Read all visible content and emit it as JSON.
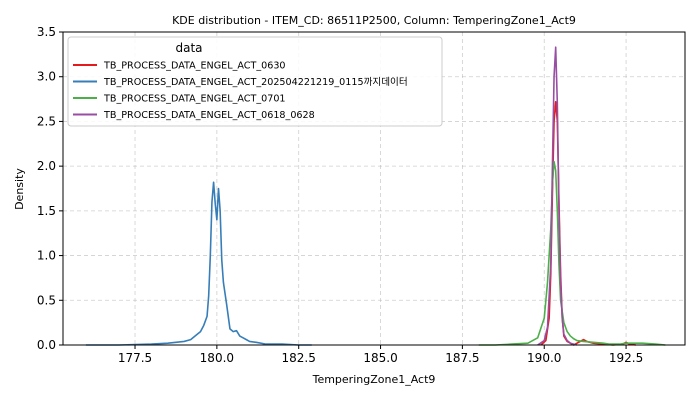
{
  "chart_data": {
    "type": "line",
    "title": "KDE distribution - ITEM_CD: 86511P2500, Column: TemperingZone1_Act9",
    "xlabel": "TemperingZone1_Act9",
    "ylabel": "Density",
    "xlim": [
      175.3,
      194.3
    ],
    "ylim": [
      0,
      3.5
    ],
    "xticks": [
      177.5,
      180.0,
      182.5,
      185.0,
      187.5,
      190.0,
      192.5
    ],
    "xtick_labels": [
      "177.5",
      "180.0",
      "182.5",
      "185.0",
      "187.5",
      "190.0",
      "192.5"
    ],
    "yticks": [
      0.0,
      0.5,
      1.0,
      1.5,
      2.0,
      2.5,
      3.0,
      3.5
    ],
    "ytick_labels": [
      "0.0",
      "0.5",
      "1.0",
      "1.5",
      "2.0",
      "2.5",
      "3.0",
      "3.5"
    ],
    "grid": true,
    "legend_title": "data",
    "legend_position": "top-left",
    "series": [
      {
        "name": "TB_PROCESS_DATA_ENGEL_ACT_0630",
        "color": "#e41a1c",
        "x": [
          189.9,
          190.05,
          190.15,
          190.2,
          190.25,
          190.3,
          190.35,
          190.4,
          190.45,
          190.5,
          190.55,
          190.6,
          190.7,
          190.8,
          190.9,
          191.0,
          191.1,
          191.2,
          191.3,
          191.5,
          191.8,
          192.1,
          192.4,
          192.5,
          192.6,
          192.8
        ],
        "y": [
          0.0,
          0.05,
          0.3,
          0.8,
          1.7,
          2.5,
          2.72,
          2.5,
          1.6,
          0.8,
          0.3,
          0.1,
          0.04,
          0.02,
          0.0,
          0.02,
          0.04,
          0.06,
          0.04,
          0.02,
          0.01,
          0.0,
          0.01,
          0.03,
          0.01,
          0.0
        ]
      },
      {
        "name": "TB_PROCESS_DATA_ENGEL_ACT_202504221219_0115까지데이터",
        "color": "#377eb8",
        "x": [
          176.0,
          177.0,
          178.0,
          178.5,
          179.0,
          179.2,
          179.4,
          179.5,
          179.6,
          179.7,
          179.75,
          179.8,
          179.85,
          179.9,
          179.95,
          180.0,
          180.05,
          180.1,
          180.15,
          180.2,
          180.3,
          180.4,
          180.5,
          180.6,
          180.7,
          180.8,
          180.9,
          181.0,
          181.2,
          181.5,
          182.0,
          182.5,
          182.9
        ],
        "y": [
          0.0,
          0.0,
          0.01,
          0.02,
          0.04,
          0.06,
          0.12,
          0.15,
          0.22,
          0.32,
          0.55,
          1.0,
          1.6,
          1.82,
          1.58,
          1.4,
          1.75,
          1.5,
          0.95,
          0.7,
          0.45,
          0.18,
          0.15,
          0.16,
          0.1,
          0.08,
          0.06,
          0.04,
          0.03,
          0.01,
          0.01,
          0.0,
          0.0
        ]
      },
      {
        "name": "TB_PROCESS_DATA_ENGEL_ACT_0701",
        "color": "#4daf4a",
        "x": [
          188.0,
          188.5,
          189.0,
          189.5,
          189.8,
          190.0,
          190.1,
          190.2,
          190.25,
          190.3,
          190.35,
          190.4,
          190.45,
          190.5,
          190.6,
          190.7,
          190.8,
          190.9,
          191.0,
          191.2,
          191.5,
          191.8,
          192.0,
          192.3,
          192.5,
          192.7,
          193.0,
          193.4,
          193.7
        ],
        "y": [
          0.0,
          0.0,
          0.01,
          0.02,
          0.08,
          0.3,
          0.7,
          1.3,
          1.8,
          2.05,
          1.95,
          1.5,
          0.9,
          0.5,
          0.25,
          0.15,
          0.1,
          0.07,
          0.05,
          0.04,
          0.03,
          0.02,
          0.01,
          0.01,
          0.02,
          0.02,
          0.02,
          0.01,
          0.0
        ]
      },
      {
        "name": "TB_PROCESS_DATA_ENGEL_ACT_0618_0628",
        "color": "#984ea3",
        "x": [
          189.8,
          190.0,
          190.1,
          190.2,
          190.25,
          190.3,
          190.35,
          190.4,
          190.45,
          190.5,
          190.55,
          190.6,
          190.7,
          190.8,
          190.9,
          191.0
        ],
        "y": [
          0.0,
          0.05,
          0.2,
          0.9,
          2.0,
          3.0,
          3.33,
          2.7,
          1.5,
          0.7,
          0.3,
          0.12,
          0.05,
          0.02,
          0.01,
          0.0
        ]
      }
    ]
  }
}
